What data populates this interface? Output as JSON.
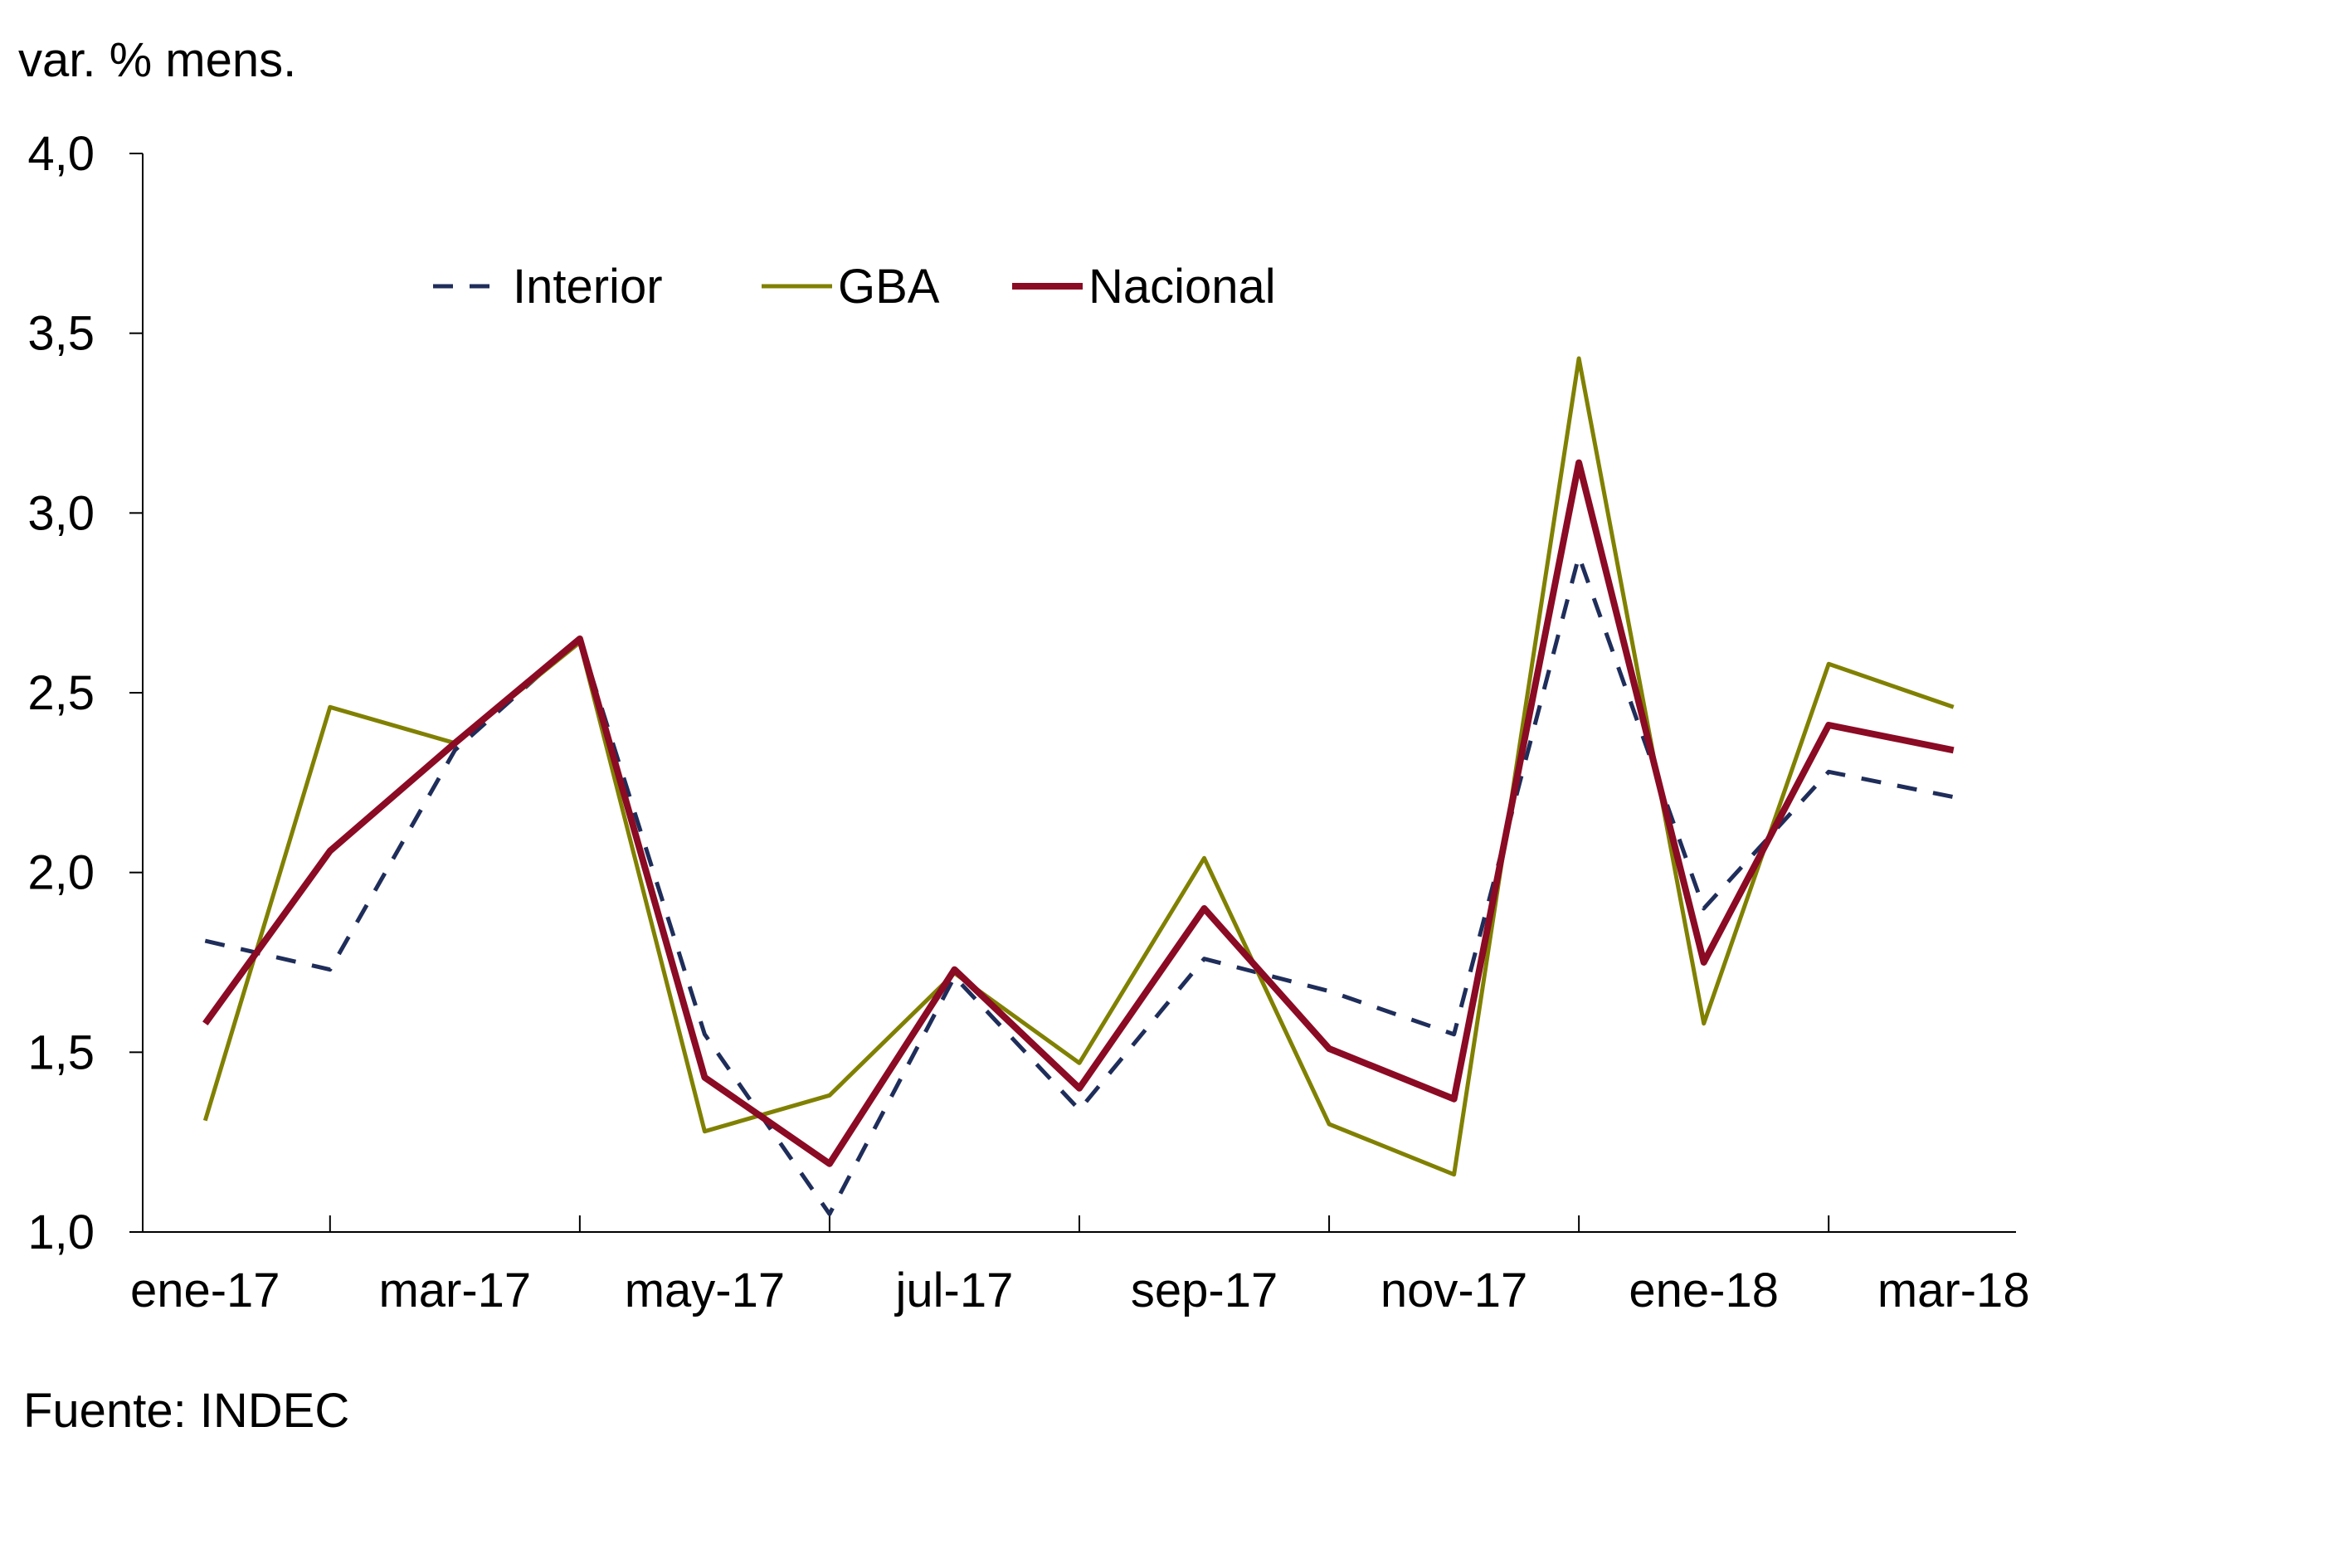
{
  "chart_data": {
    "type": "line",
    "unit_label": "var. % mens.",
    "source": "Fuente: INDEC",
    "x": [
      "ene-17",
      "feb-17",
      "mar-17",
      "abr-17",
      "may-17",
      "jun-17",
      "jul-17",
      "ago-17",
      "sep-17",
      "oct-17",
      "nov-17",
      "dic-17",
      "ene-18",
      "feb-18",
      "mar-18"
    ],
    "x_tick_labels": [
      "ene-17",
      "mar-17",
      "may-17",
      "jul-17",
      "sep-17",
      "nov-17",
      "ene-18",
      "mar-18"
    ],
    "y_ticks": [
      "1,0",
      "1,5",
      "2,0",
      "2,5",
      "3,0",
      "3,5",
      "4,0"
    ],
    "ylim": [
      1.0,
      4.0
    ],
    "legend_position": "top-left",
    "grid": false,
    "series": [
      {
        "name": "Interior",
        "color": "#1f2d5a",
        "style": "dashed",
        "values": [
          1.81,
          1.73,
          2.34,
          2.65,
          1.55,
          1.05,
          1.71,
          1.34,
          1.76,
          1.67,
          1.55,
          2.88,
          1.9,
          2.28,
          2.21
        ]
      },
      {
        "name": "GBA",
        "color": "#808000",
        "style": "solid",
        "values": [
          1.31,
          2.46,
          2.36,
          2.64,
          1.28,
          1.38,
          1.72,
          1.47,
          2.04,
          1.3,
          1.16,
          3.43,
          1.58,
          2.58,
          2.46
        ]
      },
      {
        "name": "Nacional",
        "color": "#8b0a24",
        "style": "solid-thick",
        "values": [
          1.58,
          2.06,
          2.36,
          2.65,
          1.43,
          1.19,
          1.73,
          1.4,
          1.9,
          1.51,
          1.37,
          3.14,
          1.75,
          2.41,
          2.34
        ]
      }
    ]
  }
}
